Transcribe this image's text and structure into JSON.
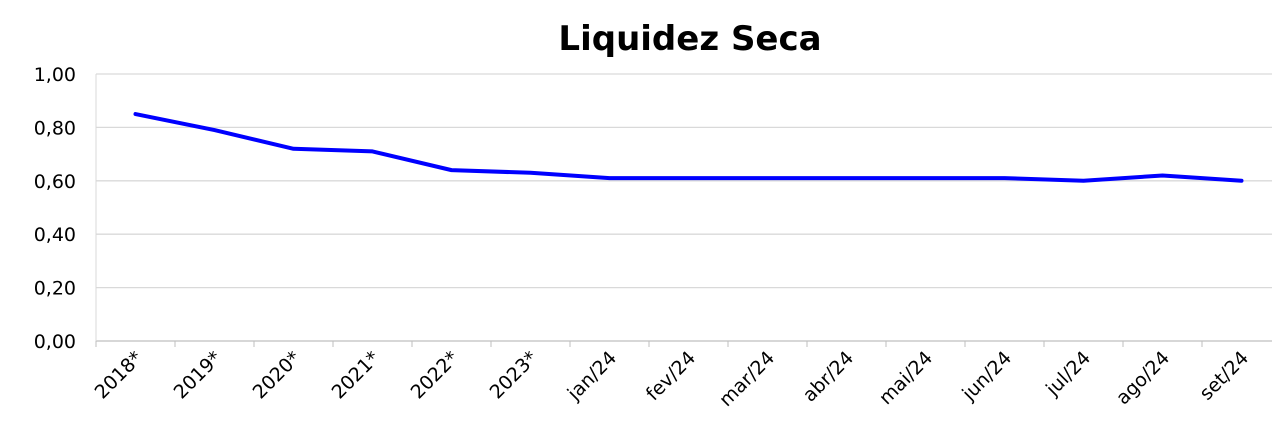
{
  "chart_data": {
    "type": "line",
    "title": "Liquidez Seca",
    "categories": [
      "2018*",
      "2019*",
      "2020*",
      "2021*",
      "2022*",
      "2023*",
      "jan/24",
      "fev/24",
      "mar/24",
      "abr/24",
      "mai/24",
      "jun/24",
      "jul/24",
      "ago/24",
      "set/24"
    ],
    "series": [
      {
        "name": "Liquidez Seca",
        "color": "#0000ff",
        "values": [
          0.85,
          0.79,
          0.72,
          0.71,
          0.64,
          0.63,
          0.61,
          0.61,
          0.61,
          0.61,
          0.61,
          0.61,
          0.6,
          0.62,
          0.6
        ]
      }
    ],
    "ylim": [
      0,
      1
    ],
    "yticks": [
      {
        "value": 0,
        "label": "0,00"
      },
      {
        "value": 0.2,
        "label": "0,20"
      },
      {
        "value": 0.4,
        "label": "0,40"
      },
      {
        "value": 0.6,
        "label": "0,60"
      },
      {
        "value": 0.8,
        "label": "0,80"
      },
      {
        "value": 1,
        "label": "1,00"
      }
    ],
    "grid": true
  }
}
